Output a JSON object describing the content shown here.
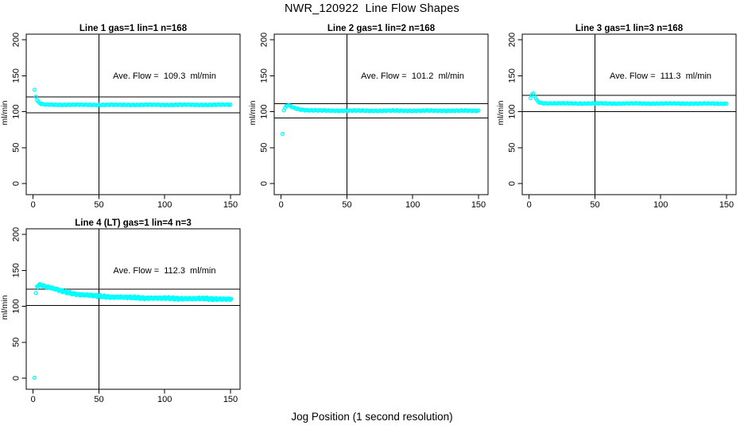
{
  "figure": {
    "title": "NWR_120922  Line Flow Shapes",
    "xlabel": "Jog Position (1 second resolution)",
    "ylabel": "ml/min",
    "background_color": "#ffffff",
    "axis_color": "#000000",
    "point_color": "#00ffff"
  },
  "chart_data": [
    {
      "type": "scatter",
      "title": "Line 1 gas=1 lin=1 n=168",
      "ylabel": "ml/min",
      "annotation": "Ave. Flow =  109.3  ml/min",
      "ave_flow_ml_min": 109.3,
      "ref_lines_y": [
        98.4,
        120.2
      ],
      "vline_x": 50,
      "xlim": [
        0,
        150
      ],
      "ylim": [
        0,
        200
      ],
      "x_ticks": [
        0,
        50,
        100,
        150
      ],
      "y_ticks": [
        0,
        50,
        100,
        150,
        200
      ],
      "grid": false,
      "marker": "open-circle",
      "outliers": [],
      "trend": [
        [
          1,
          130
        ],
        [
          2,
          121
        ],
        [
          3,
          116
        ],
        [
          4,
          113
        ],
        [
          5,
          111.5
        ],
        [
          6,
          110.5
        ],
        [
          8,
          109.9
        ],
        [
          10,
          109.7
        ],
        [
          15,
          109.6
        ],
        [
          20,
          109.5
        ],
        [
          50,
          109.4
        ],
        [
          100,
          109.4
        ],
        [
          150,
          109.5
        ]
      ],
      "scatter_band": 0.5,
      "passes": 1
    },
    {
      "type": "scatter",
      "title": "Line 2 gas=1 lin=2 n=168",
      "ylabel": "ml/min",
      "annotation": "Ave. Flow =  101.2  ml/min",
      "ave_flow_ml_min": 101.2,
      "ref_lines_y": [
        91.1,
        111.3
      ],
      "vline_x": 50,
      "xlim": [
        0,
        150
      ],
      "ylim": [
        0,
        200
      ],
      "x_ticks": [
        0,
        50,
        100,
        150
      ],
      "y_ticks": [
        0,
        50,
        100,
        150,
        200
      ],
      "grid": false,
      "marker": "open-circle",
      "outliers": [
        [
          1,
          69
        ]
      ],
      "trend": [
        [
          2,
          102
        ],
        [
          3,
          105
        ],
        [
          4,
          107.5
        ],
        [
          5,
          108.8
        ],
        [
          6,
          108.3
        ],
        [
          7,
          107.4
        ],
        [
          8,
          106.6
        ],
        [
          10,
          105.2
        ],
        [
          12,
          104.1
        ],
        [
          14,
          103.2
        ],
        [
          16,
          102.7
        ],
        [
          18,
          102.3
        ],
        [
          20,
          102
        ],
        [
          25,
          101.6
        ],
        [
          30,
          101.4
        ],
        [
          40,
          101.3
        ],
        [
          50,
          101.3
        ],
        [
          75,
          101.2
        ],
        [
          100,
          101.2
        ],
        [
          125,
          101.2
        ],
        [
          150,
          101.1
        ]
      ],
      "scatter_band": 0.6,
      "passes": 1
    },
    {
      "type": "scatter",
      "title": "Line 3 gas=1 lin=3 n=168",
      "ylabel": "ml/min",
      "annotation": "Ave. Flow =  111.3  ml/min",
      "ave_flow_ml_min": 111.3,
      "ref_lines_y": [
        100.2,
        122.4
      ],
      "vline_x": 50,
      "xlim": [
        0,
        150
      ],
      "ylim": [
        0,
        200
      ],
      "x_ticks": [
        0,
        50,
        100,
        150
      ],
      "y_ticks": [
        0,
        50,
        100,
        150,
        200
      ],
      "grid": false,
      "marker": "open-circle",
      "outliers": [],
      "trend": [
        [
          1,
          119
        ],
        [
          2,
          123.5
        ],
        [
          3,
          125
        ],
        [
          4,
          122
        ],
        [
          5,
          118.5
        ],
        [
          6,
          115.5
        ],
        [
          7,
          113.8
        ],
        [
          8,
          112.8
        ],
        [
          10,
          111.9
        ],
        [
          15,
          111.5
        ],
        [
          20,
          111.4
        ],
        [
          50,
          111.3
        ],
        [
          100,
          111.2
        ],
        [
          150,
          111.1
        ]
      ],
      "scatter_band": 0.5,
      "passes": 1
    },
    {
      "type": "scatter",
      "title": "Line 4 (LT) gas=1 lin=4 n=3",
      "ylabel": "ml/min",
      "annotation": "Ave. Flow =  112.3  ml/min",
      "ave_flow_ml_min": 112.3,
      "ref_lines_y": [
        101.1,
        123.5
      ],
      "vline_x": 50,
      "xlim": [
        0,
        150
      ],
      "ylim": [
        0,
        200
      ],
      "x_ticks": [
        0,
        50,
        100,
        150
      ],
      "y_ticks": [
        0,
        50,
        100,
        150,
        200
      ],
      "grid": false,
      "marker": "open-circle",
      "outliers": [
        [
          1,
          0.5
        ],
        [
          2,
          118.5
        ]
      ],
      "trend": [
        [
          3,
          128
        ],
        [
          4,
          129.8
        ],
        [
          5,
          130.4
        ],
        [
          6,
          129.9
        ],
        [
          8,
          128.6
        ],
        [
          10,
          127.4
        ],
        [
          12,
          126.4
        ],
        [
          15,
          124.7
        ],
        [
          20,
          122.2
        ],
        [
          25,
          119.8
        ],
        [
          30,
          118
        ],
        [
          35,
          116.6
        ],
        [
          40,
          115.7
        ],
        [
          45,
          115
        ],
        [
          50,
          114.3
        ],
        [
          60,
          113.2
        ],
        [
          70,
          112.5
        ],
        [
          80,
          112
        ],
        [
          90,
          111.6
        ],
        [
          100,
          111.3
        ],
        [
          110,
          111.1
        ],
        [
          120,
          110.9
        ],
        [
          130,
          110.7
        ],
        [
          140,
          110.5
        ],
        [
          150,
          110.2
        ]
      ],
      "scatter_band": 1.1,
      "passes": 2
    }
  ]
}
